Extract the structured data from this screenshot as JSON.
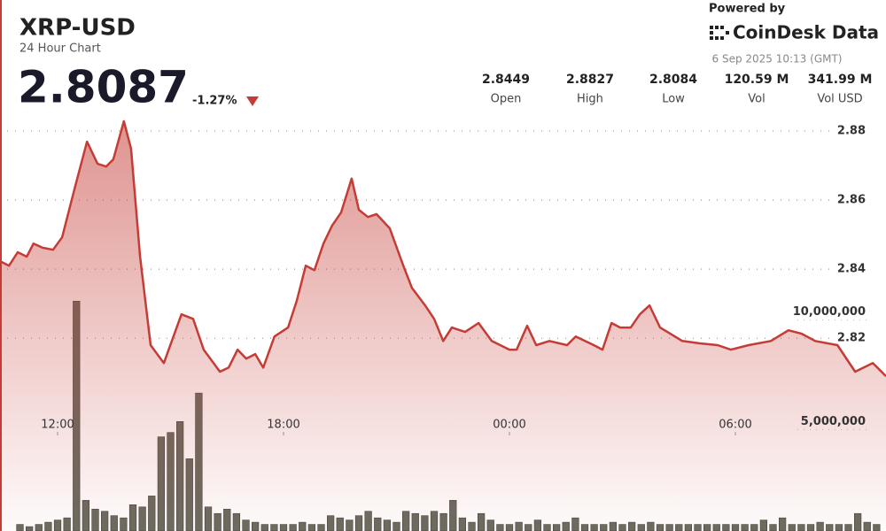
{
  "header": {
    "title": "XRP-USD",
    "subtitle": "24 Hour Chart",
    "price": "2.8087",
    "change": "-1.27%",
    "powered_by": "Powered by",
    "brand": "CoinDesk Data",
    "timestamp": "6 Sep 2025 10:13 (GMT)",
    "stats": [
      {
        "value": "2.8449",
        "label": "Open"
      },
      {
        "value": "2.8827",
        "label": "High"
      },
      {
        "value": "2.8084",
        "label": "Low"
      },
      {
        "value": "120.59 M",
        "label": "Vol"
      },
      {
        "value": "341.99 M",
        "label": "Vol USD"
      }
    ]
  },
  "chart_data": {
    "type": "line",
    "xlim": [
      10.47,
      34
    ],
    "xticks": [
      {
        "value": 12,
        "label": "12:00"
      },
      {
        "value": 18,
        "label": "18:00"
      },
      {
        "value": 24,
        "label": "00:00"
      },
      {
        "value": 30,
        "label": "06:00"
      }
    ],
    "ylim": [
      2.7642,
      2.8846
    ],
    "yticks": [
      2.82,
      2.84,
      2.86,
      2.88
    ],
    "y2lim": [
      0,
      19000000
    ],
    "y2ticks": [
      {
        "value": 5000000,
        "label": "5,000,000"
      },
      {
        "value": 10000000,
        "label": "10,000,000"
      }
    ],
    "grid": true,
    "series": [
      {
        "name": "Price",
        "color": "#c43c35",
        "x": [
          10.47,
          10.71,
          10.94,
          11.18,
          11.36,
          11.6,
          11.88,
          12.12,
          12.47,
          12.78,
          13.06,
          13.29,
          13.48,
          13.76,
          13.95,
          14.19,
          14.47,
          14.82,
          15.29,
          15.6,
          15.88,
          16.31,
          16.54,
          16.78,
          17.01,
          17.25,
          17.46,
          17.76,
          18.12,
          18.35,
          18.59,
          18.82,
          19.06,
          19.29,
          19.53,
          19.81,
          20,
          20.24,
          20.47,
          20.82,
          21.18,
          21.41,
          21.76,
          22,
          22.24,
          22.47,
          22.82,
          23.18,
          23.53,
          24,
          24.19,
          24.47,
          24.71,
          25.06,
          25.53,
          25.76,
          26.24,
          26.47,
          26.71,
          26.94,
          27.22,
          27.46,
          27.72,
          28,
          28.59,
          29.06,
          29.53,
          29.88,
          30.35,
          30.94,
          31.41,
          31.76,
          32.12,
          32.71,
          33.18,
          33.65,
          34
        ],
        "values": [
          2.8423,
          2.841,
          2.8449,
          2.8436,
          2.8474,
          2.8462,
          2.8456,
          2.8492,
          2.8641,
          2.8769,
          2.8705,
          2.8697,
          2.8718,
          2.8828,
          2.8749,
          2.8436,
          2.818,
          2.8128,
          2.8269,
          2.8256,
          2.8167,
          2.8103,
          2.8115,
          2.8167,
          2.8141,
          2.8154,
          2.8115,
          2.8205,
          2.8231,
          2.8308,
          2.841,
          2.8397,
          2.8474,
          2.8526,
          2.8564,
          2.8662,
          2.8572,
          2.8551,
          2.8559,
          2.8518,
          2.841,
          2.8346,
          2.8295,
          2.8256,
          2.8192,
          2.8231,
          2.8218,
          2.8244,
          2.8192,
          2.8167,
          2.8167,
          2.8236,
          2.818,
          2.8192,
          2.818,
          2.8205,
          2.818,
          2.8167,
          2.8244,
          2.8231,
          2.8231,
          2.8269,
          2.8295,
          2.8231,
          2.8192,
          2.8185,
          2.818,
          2.8167,
          2.818,
          2.8192,
          2.8223,
          2.8213,
          2.8192,
          2.818,
          2.8103,
          2.8128,
          2.809
        ]
      },
      {
        "name": "Volume",
        "color": "#6b6b60",
        "axis": "y2",
        "x": [
          11,
          11.25,
          11.5,
          11.75,
          12,
          12.25,
          12.5,
          12.75,
          13,
          13.25,
          13.5,
          13.75,
          14,
          14.25,
          14.5,
          14.75,
          15,
          15.25,
          15.5,
          15.75,
          16,
          16.25,
          16.5,
          16.75,
          17,
          17.25,
          17.5,
          17.75,
          18,
          18.25,
          18.5,
          18.75,
          19,
          19.25,
          19.5,
          19.75,
          20,
          20.25,
          20.5,
          20.75,
          21,
          21.25,
          21.5,
          21.75,
          22,
          22.25,
          22.5,
          22.75,
          23,
          23.25,
          23.5,
          23.75,
          24,
          24.25,
          24.5,
          24.75,
          25,
          25.25,
          25.5,
          25.75,
          26,
          26.25,
          26.5,
          26.75,
          27,
          27.25,
          27.5,
          27.75,
          28,
          28.25,
          28.5,
          28.75,
          29,
          29.25,
          29.5,
          29.75,
          30,
          30.25,
          30.5,
          30.75,
          31,
          31.25,
          31.5,
          31.75,
          32,
          32.25,
          32.5,
          32.75,
          33,
          33.25,
          33.5,
          33.75
        ],
        "values": [
          300000,
          200000,
          300000,
          400000,
          500000,
          600000,
          10500000,
          1400000,
          1000000,
          900000,
          700000,
          600000,
          1200000,
          1100000,
          1600000,
          4300000,
          4500000,
          5000000,
          3300000,
          6300000,
          1100000,
          800000,
          1000000,
          800000,
          500000,
          400000,
          300000,
          300000,
          300000,
          300000,
          400000,
          300000,
          300000,
          700000,
          600000,
          500000,
          700000,
          900000,
          600000,
          500000,
          400000,
          900000,
          800000,
          700000,
          900000,
          800000,
          1400000,
          600000,
          400000,
          800000,
          500000,
          300000,
          300000,
          400000,
          300000,
          500000,
          300000,
          300000,
          400000,
          600000,
          300000,
          300000,
          300000,
          400000,
          300000,
          400000,
          300000,
          400000,
          300000,
          300000,
          300000,
          300000,
          300000,
          300000,
          300000,
          300000,
          300000,
          300000,
          300000,
          500000,
          300000,
          600000,
          300000,
          300000,
          300000,
          400000,
          300000,
          300000,
          300000,
          800000,
          400000,
          300000
        ]
      }
    ]
  }
}
